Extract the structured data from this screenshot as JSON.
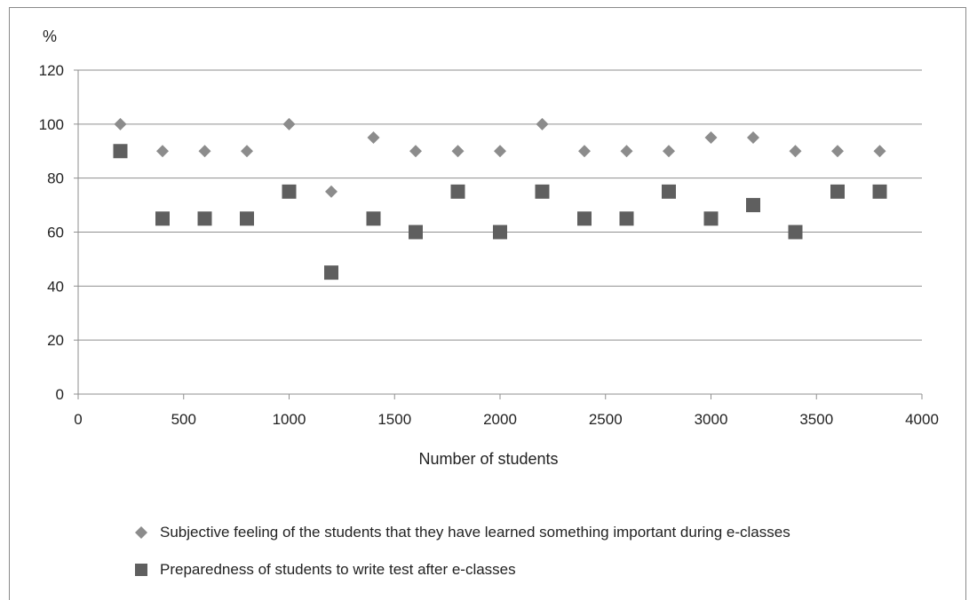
{
  "chart_data": {
    "type": "scatter",
    "title": "",
    "xlabel": "Number of students",
    "ylabel": "%",
    "xlim": [
      0,
      4000
    ],
    "ylim": [
      0,
      120
    ],
    "xticks": [
      0,
      500,
      1000,
      1500,
      2000,
      2500,
      3000,
      3500,
      4000
    ],
    "yticks": [
      0,
      20,
      40,
      60,
      80,
      100,
      120
    ],
    "grid": "horizontal",
    "legend_position": "bottom",
    "series": [
      {
        "name": "Subjective feeling of the students that they have learned something important during e-classes",
        "marker": "diamond",
        "color": "#8c8c8c",
        "x": [
          200,
          400,
          600,
          800,
          1000,
          1200,
          1400,
          1600,
          1800,
          2000,
          2200,
          2400,
          2600,
          2800,
          3000,
          3200,
          3400,
          3600,
          3800
        ],
        "y": [
          100,
          90,
          90,
          90,
          100,
          75,
          95,
          90,
          90,
          90,
          100,
          90,
          90,
          90,
          95,
          95,
          90,
          90,
          90
        ]
      },
      {
        "name": "Preparedness of students to write test after e-classes",
        "marker": "square",
        "color": "#5f5f5f",
        "x": [
          200,
          400,
          600,
          800,
          1000,
          1200,
          1400,
          1600,
          1800,
          2000,
          2200,
          2400,
          2600,
          2800,
          3000,
          3200,
          3400,
          3600,
          3800
        ],
        "y": [
          90,
          65,
          65,
          65,
          75,
          45,
          65,
          60,
          75,
          60,
          75,
          65,
          65,
          75,
          65,
          70,
          60,
          75,
          75
        ]
      }
    ]
  }
}
